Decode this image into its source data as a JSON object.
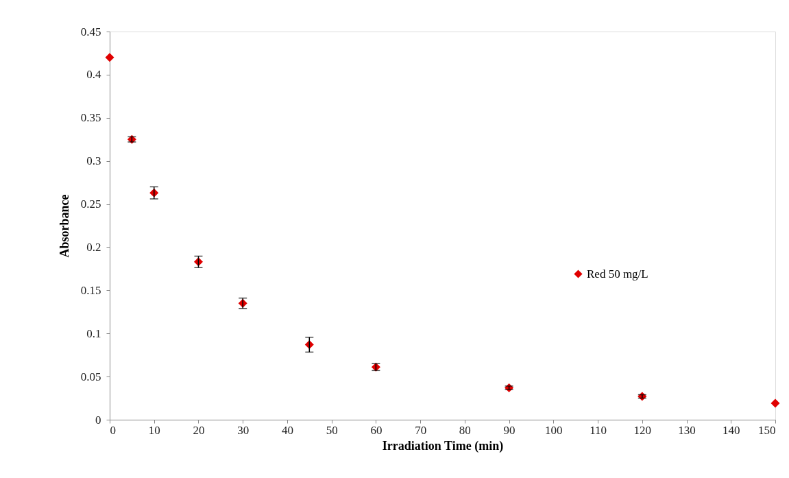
{
  "chart_data": {
    "type": "scatter",
    "xlabel": "Irradiation  Time (min)",
    "ylabel": "Absorbance",
    "x": [
      0,
      5,
      10,
      20,
      30,
      45,
      60,
      90,
      120,
      150
    ],
    "series": [
      {
        "name": "Red 50 mg/L",
        "color": "#e00000",
        "values": [
          0.42,
          0.325,
          0.263,
          0.183,
          0.135,
          0.087,
          0.061,
          0.037,
          0.027,
          0.019
        ],
        "errors": [
          null,
          0.003,
          0.007,
          0.0066,
          0.006,
          0.0086,
          0.004,
          0.002,
          0.002,
          null
        ]
      }
    ],
    "xlim": [
      0,
      150
    ],
    "xticks": [
      0,
      10,
      20,
      30,
      40,
      50,
      60,
      70,
      80,
      90,
      100,
      110,
      120,
      130,
      140,
      150
    ],
    "ylim": [
      0,
      0.45
    ],
    "yticks": [
      0,
      0.05,
      0.1,
      0.15,
      0.2,
      0.25,
      0.3,
      0.35,
      0.4,
      0.45
    ],
    "grid": false,
    "legend": "right",
    "marker": "diamond"
  }
}
